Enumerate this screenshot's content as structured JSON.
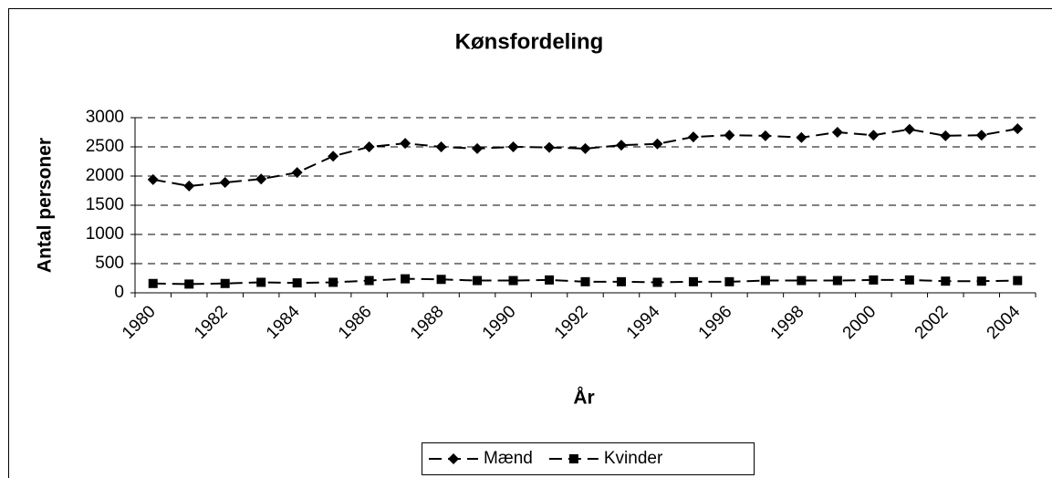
{
  "chart_data": {
    "type": "line",
    "title": "Kønsfordeling",
    "x_label": "År",
    "y_label": "Antal personer",
    "categories": [
      1980,
      null,
      1982,
      null,
      1984,
      null,
      1986,
      null,
      1988,
      null,
      1990,
      null,
      1992,
      null,
      1994,
      null,
      1996,
      null,
      1998,
      null,
      2000,
      null,
      2002,
      null,
      2004
    ],
    "series": [
      {
        "name": "Mænd",
        "color": "#000000",
        "marker": "diamond",
        "values": [
          1940,
          1830,
          1890,
          1950,
          2060,
          2340,
          2500,
          2560,
          2500,
          2470,
          2500,
          2490,
          2470,
          2530,
          2550,
          2670,
          2700,
          2690,
          2660,
          2750,
          2700,
          2800,
          2690,
          2700,
          2810
        ]
      },
      {
        "name": "Kvinder",
        "color": "#000000",
        "marker": "square",
        "values": [
          160,
          150,
          160,
          180,
          170,
          180,
          210,
          240,
          230,
          210,
          210,
          220,
          190,
          190,
          180,
          190,
          190,
          210,
          210,
          210,
          220,
          220,
          200,
          200,
          210
        ]
      }
    ],
    "ylim": [
      0,
      3000
    ],
    "yticks": [
      0,
      500,
      1000,
      1500,
      2000,
      2500,
      3000
    ],
    "grid": true,
    "legend": "bottom"
  }
}
